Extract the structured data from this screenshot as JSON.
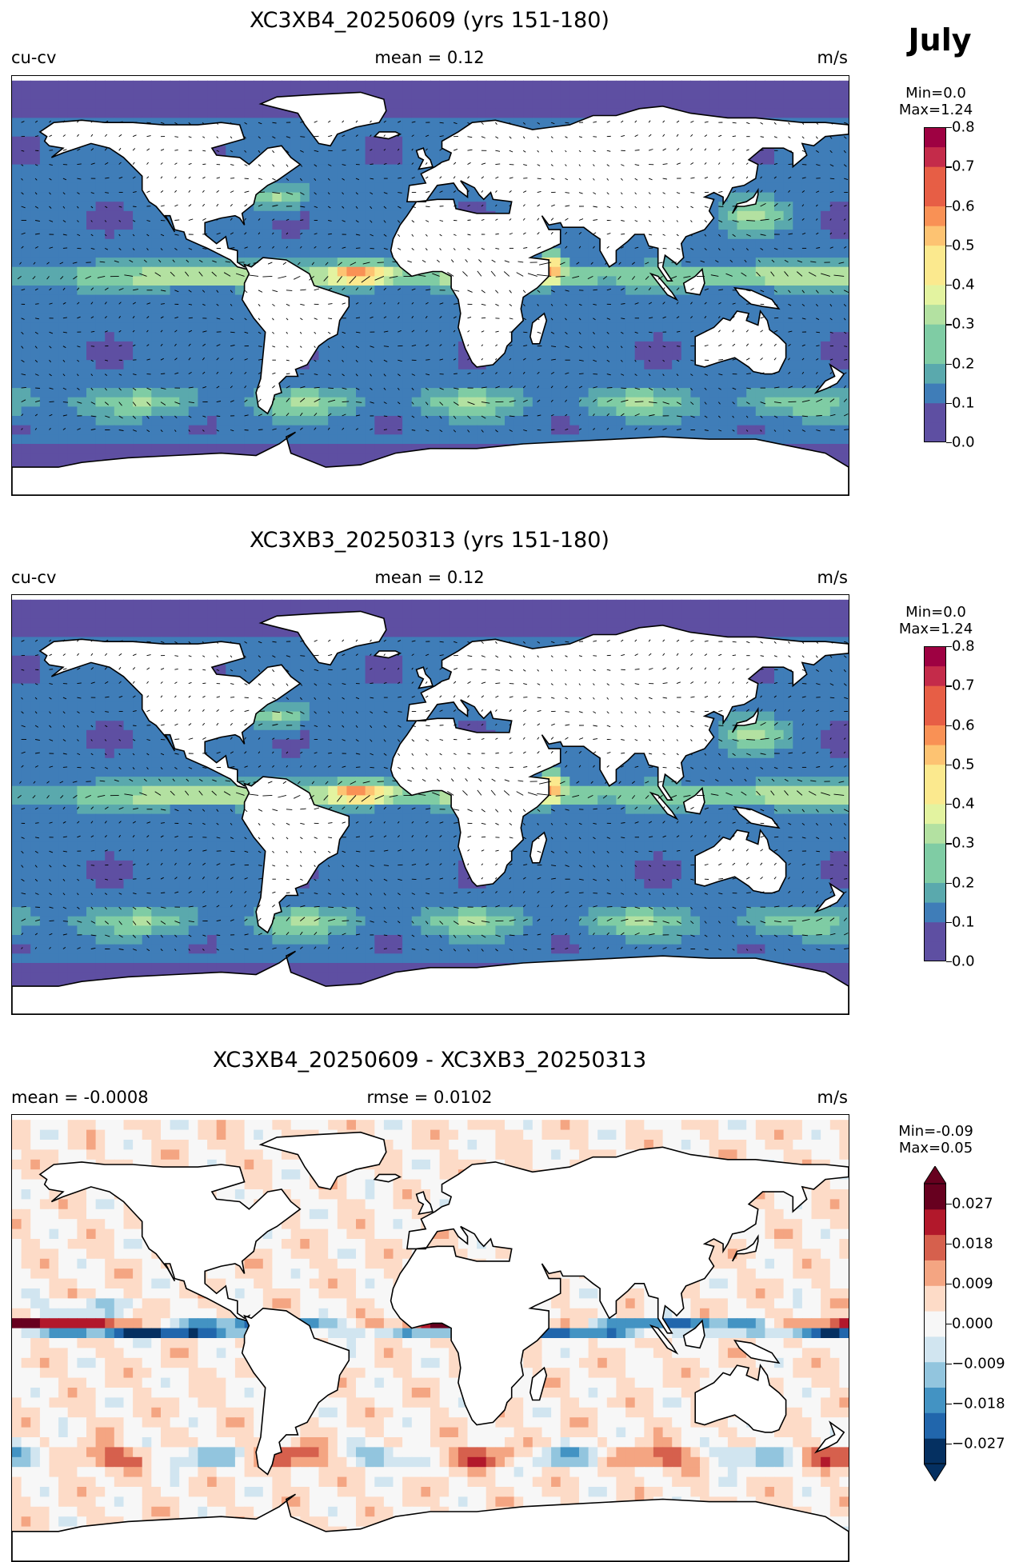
{
  "month": "July",
  "panels": [
    {
      "title": "XC3XB4_20250609 (yrs 151-180)",
      "left": "cu-cv",
      "center": "mean = 0.12",
      "right": "m/s",
      "minmax": [
        "Min=0.0",
        "Max=1.24"
      ],
      "ticks": [
        "0.8",
        "0.7",
        "0.6",
        "0.5",
        "0.4",
        "0.3",
        "0.2",
        "0.1",
        "0.0"
      ],
      "cmap": "spectral"
    },
    {
      "title": "XC3XB3_20250313 (yrs 151-180)",
      "left": "cu-cv",
      "center": "mean = 0.12",
      "right": "m/s",
      "minmax": [
        "Min=0.0",
        "Max=1.24"
      ],
      "ticks": [
        "0.8",
        "0.7",
        "0.6",
        "0.5",
        "0.4",
        "0.3",
        "0.2",
        "0.1",
        "0.0"
      ],
      "cmap": "spectral"
    },
    {
      "title": "XC3XB4_20250609 - XC3XB3_20250313",
      "left": "mean = -0.0008",
      "center": "rmse = 0.0102",
      "right": "m/s",
      "minmax": [
        "Min=-0.09",
        "Max=0.05"
      ],
      "ticks": [
        "0.027",
        "0.018",
        "0.009",
        "0.000",
        "−0.009",
        "−0.018",
        "−0.027"
      ],
      "cmap": "rdbu"
    }
  ],
  "colors": {
    "land": "#ffffff",
    "coast": "#000000",
    "spectral_low": "#5e4fa2",
    "spectral_high": "#9e0142",
    "diff_positive": "#b2182b",
    "diff_negative": "#2166ac"
  }
}
